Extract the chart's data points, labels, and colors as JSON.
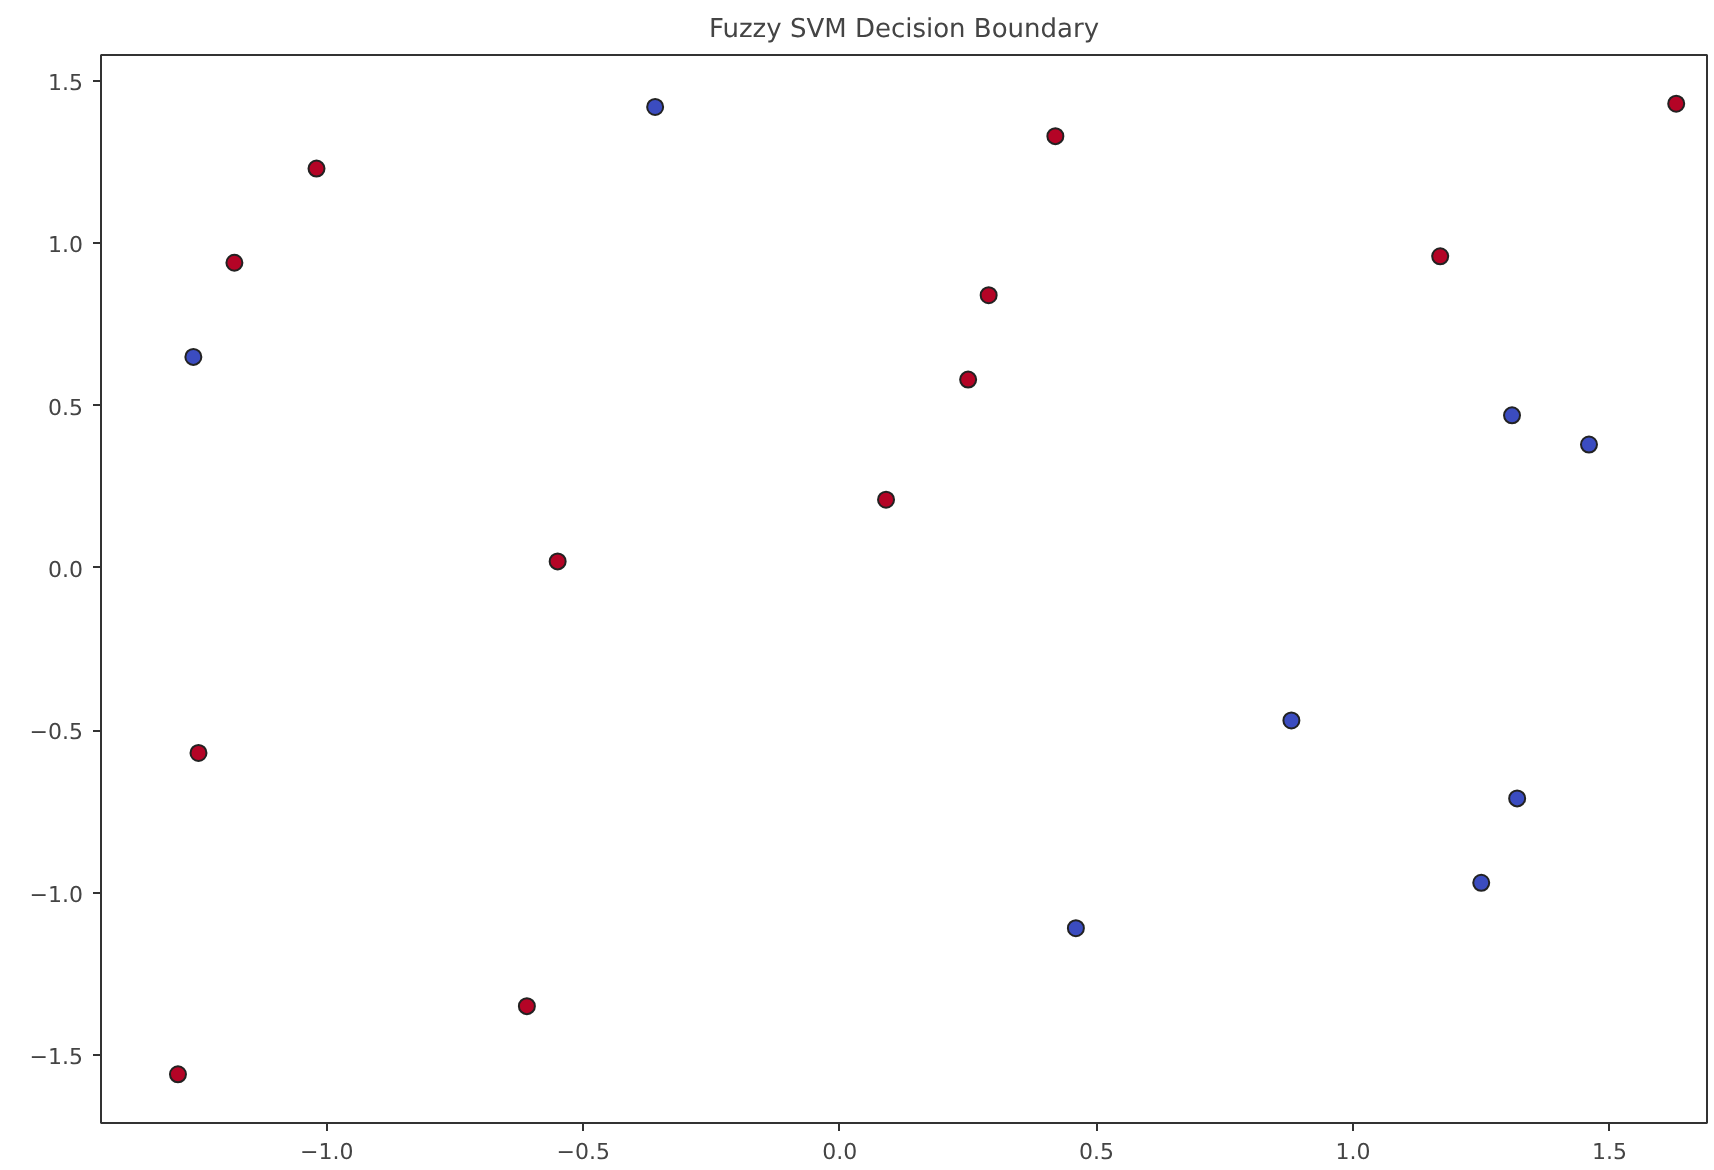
{
  "chart_data": {
    "type": "scatter",
    "title": "Fuzzy SVM Decision Boundary",
    "xlim": [
      -1.44,
      1.69
    ],
    "ylim": [
      -1.71,
      1.58
    ],
    "xticks": [
      {
        "value": -1.0,
        "label": "−1.0"
      },
      {
        "value": -0.5,
        "label": "−0.5"
      },
      {
        "value": 0.0,
        "label": "0.0"
      },
      {
        "value": 0.5,
        "label": "0.5"
      },
      {
        "value": 1.0,
        "label": "1.0"
      },
      {
        "value": 1.5,
        "label": "1.5"
      }
    ],
    "yticks": [
      {
        "value": -1.5,
        "label": "−1.5"
      },
      {
        "value": -1.0,
        "label": "−1.0"
      },
      {
        "value": -0.5,
        "label": "−0.5"
      },
      {
        "value": 0.0,
        "label": "0.0"
      },
      {
        "value": 0.5,
        "label": "0.5"
      },
      {
        "value": 1.0,
        "label": "1.0"
      },
      {
        "value": 1.5,
        "label": "1.5"
      }
    ],
    "marker": "circle",
    "series": [
      {
        "color": "#b40426",
        "x": [
          -1.29,
          -1.25,
          -1.18,
          -1.02,
          -0.61,
          -0.55,
          0.09,
          0.25,
          0.29,
          0.42,
          1.17,
          1.63
        ],
        "values": [
          -1.56,
          -0.57,
          0.94,
          1.23,
          -1.35,
          0.02,
          0.21,
          0.58,
          0.84,
          1.33,
          0.96,
          1.43
        ]
      },
      {
        "color": "#3b4cc0",
        "x": [
          -1.26,
          -0.36,
          0.46,
          0.88,
          1.25,
          1.31,
          1.32,
          1.46
        ],
        "values": [
          0.65,
          1.42,
          -1.11,
          -0.47,
          -0.97,
          0.47,
          -0.71,
          0.38
        ]
      }
    ]
  }
}
